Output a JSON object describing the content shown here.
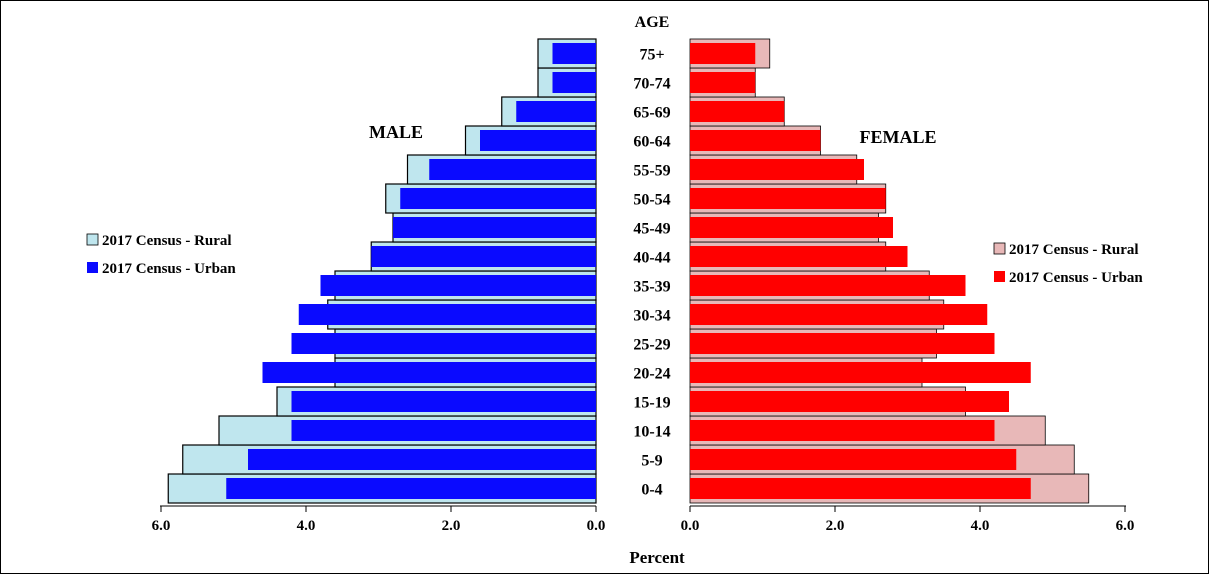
{
  "chart_data": {
    "type": "bar",
    "subtype": "population-pyramid",
    "unit": "Percent",
    "age_axis_title": "AGE",
    "x_axis_title": "Percent",
    "categories": [
      "0-4",
      "5-9",
      "10-14",
      "15-19",
      "20-24",
      "25-29",
      "30-34",
      "35-39",
      "40-44",
      "45-49",
      "50-54",
      "55-59",
      "60-64",
      "65-69",
      "70-74",
      "75+"
    ],
    "male": {
      "label": "MALE",
      "xlim": [
        6.0,
        0.0
      ],
      "ticks": [
        "6.0",
        "4.0",
        "2.0",
        "0.0"
      ],
      "tick_values": [
        6.0,
        4.0,
        2.0,
        0.0
      ],
      "legend_position": "left",
      "series": [
        {
          "name": "2017 Census - Rural",
          "color": "#bfe6ee",
          "values": [
            5.9,
            5.7,
            5.2,
            4.4,
            3.6,
            3.6,
            3.7,
            3.6,
            3.1,
            2.8,
            2.9,
            2.6,
            1.8,
            1.3,
            0.8,
            0.8
          ]
        },
        {
          "name": "2017 Census - Urban",
          "color": "#0a0aff",
          "values": [
            5.1,
            4.8,
            4.2,
            4.2,
            4.6,
            4.2,
            4.1,
            3.8,
            3.1,
            2.8,
            2.7,
            2.3,
            1.6,
            1.1,
            0.6,
            0.6
          ]
        }
      ]
    },
    "female": {
      "label": "FEMALE",
      "xlim": [
        0.0,
        6.0
      ],
      "ticks": [
        "0.0",
        "2.0",
        "4.0",
        "6.0"
      ],
      "tick_values": [
        0.0,
        2.0,
        4.0,
        6.0
      ],
      "legend_position": "right",
      "series": [
        {
          "name": "2017 Census - Rural",
          "color": "#e8b8b8",
          "values": [
            5.5,
            5.3,
            4.9,
            3.8,
            3.2,
            3.4,
            3.5,
            3.3,
            2.7,
            2.6,
            2.7,
            2.3,
            1.8,
            1.3,
            0.9,
            1.1
          ]
        },
        {
          "name": "2017 Census - Urban",
          "color": "#ff0000",
          "values": [
            4.7,
            4.5,
            4.2,
            4.4,
            4.7,
            4.2,
            4.1,
            3.8,
            3.0,
            2.8,
            2.7,
            2.4,
            1.8,
            1.3,
            0.9,
            0.9
          ]
        }
      ]
    },
    "grid": false
  }
}
